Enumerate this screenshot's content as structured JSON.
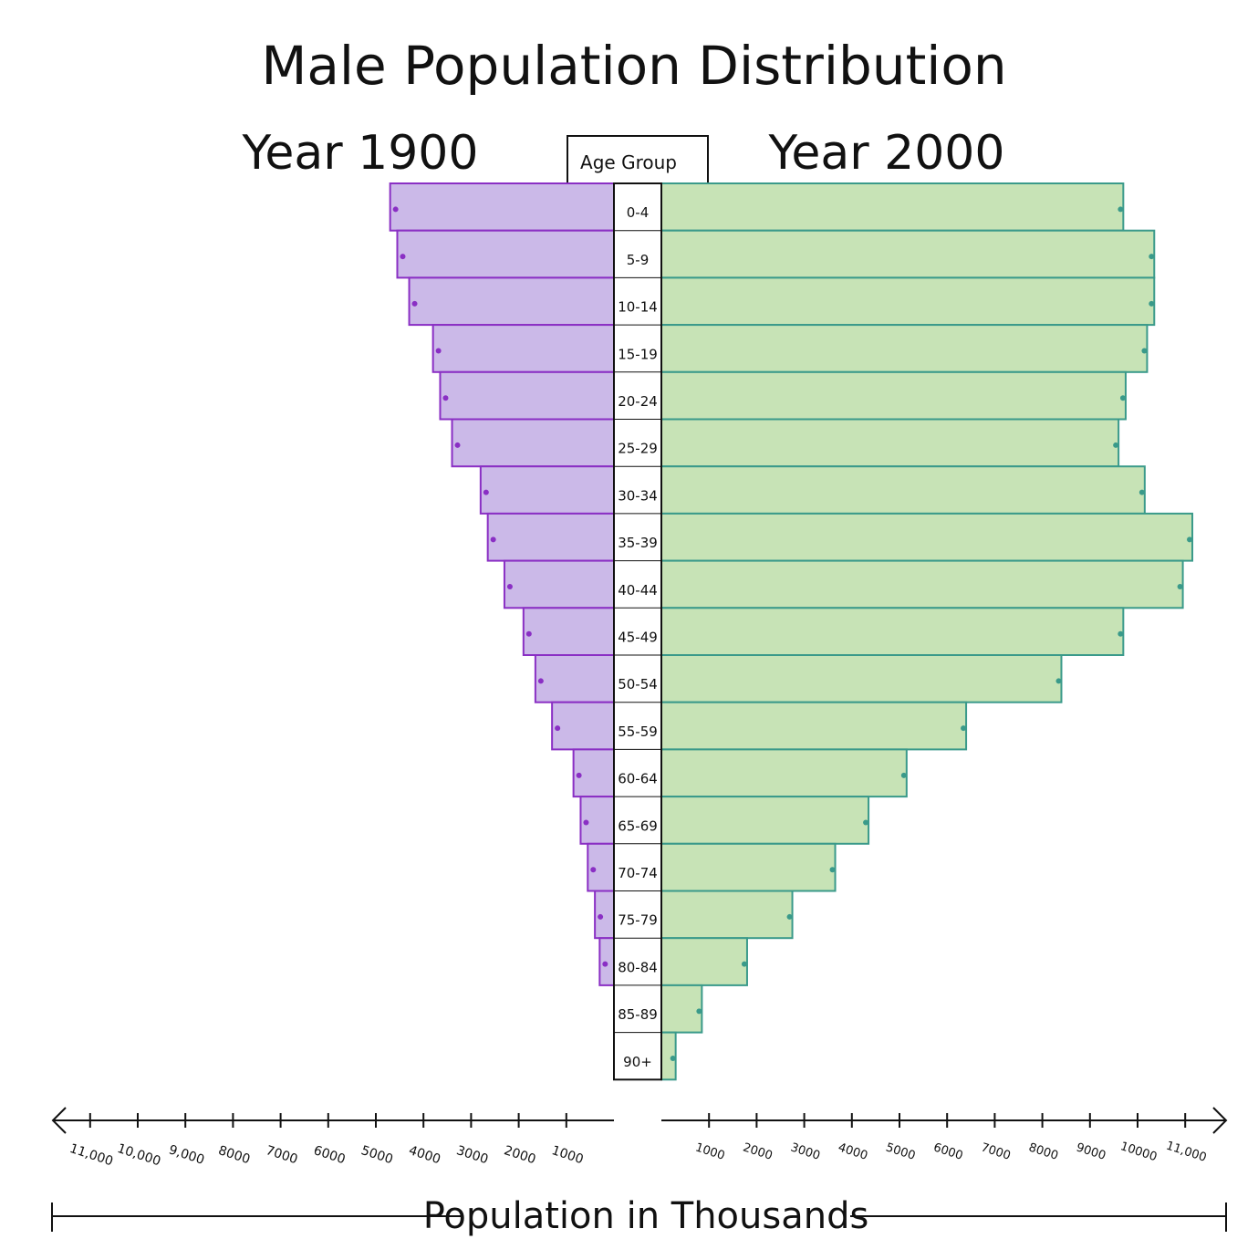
{
  "chart_data": {
    "type": "bar",
    "title": "Male Population Distribution",
    "left_header": "Year 1900",
    "right_header": "Year 2000",
    "center_header": "Age Group",
    "xlabel": "Population in Thousands",
    "categories": [
      "0-4",
      "5-9",
      "10-14",
      "15-19",
      "20-24",
      "25-29",
      "30-34",
      "35-39",
      "40-44",
      "45-49",
      "50-54",
      "55-59",
      "60-64",
      "65-69",
      "70-74",
      "75-79",
      "80-84",
      "85-89",
      "90+"
    ],
    "series": [
      {
        "name": "Year 1900",
        "values": [
          4700,
          4550,
          4300,
          3800,
          3650,
          3400,
          2800,
          2650,
          2300,
          1900,
          1650,
          1300,
          850,
          700,
          550,
          400,
          300,
          0,
          0
        ]
      },
      {
        "name": "Year 2000",
        "values": [
          9700,
          10350,
          10350,
          10200,
          9750,
          9600,
          10150,
          11150,
          10950,
          9700,
          8400,
          6400,
          5150,
          4350,
          3650,
          2750,
          1800,
          850,
          300
        ]
      }
    ],
    "left_ticks": [
      "11,000",
      "10,000",
      "9,000",
      "8000",
      "7000",
      "6000",
      "5000",
      "4000",
      "3000",
      "2000",
      "1000"
    ],
    "left_tick_values": [
      11000,
      10000,
      9000,
      8000,
      7000,
      6000,
      5000,
      4000,
      3000,
      2000,
      1000
    ],
    "right_ticks": [
      "1000",
      "2000",
      "3000",
      "4000",
      "5000",
      "6000",
      "7000",
      "8000",
      "9000",
      "10000",
      "11,000"
    ],
    "right_tick_values": [
      1000,
      2000,
      3000,
      4000,
      5000,
      6000,
      7000,
      8000,
      9000,
      10000,
      11000
    ],
    "xlim": [
      0,
      12000
    ],
    "colors": {
      "left_fill": "#cbb9e8",
      "left_stroke": "#8a2fc4",
      "right_fill": "#c7e3b6",
      "right_stroke": "#3a9a8a"
    }
  }
}
